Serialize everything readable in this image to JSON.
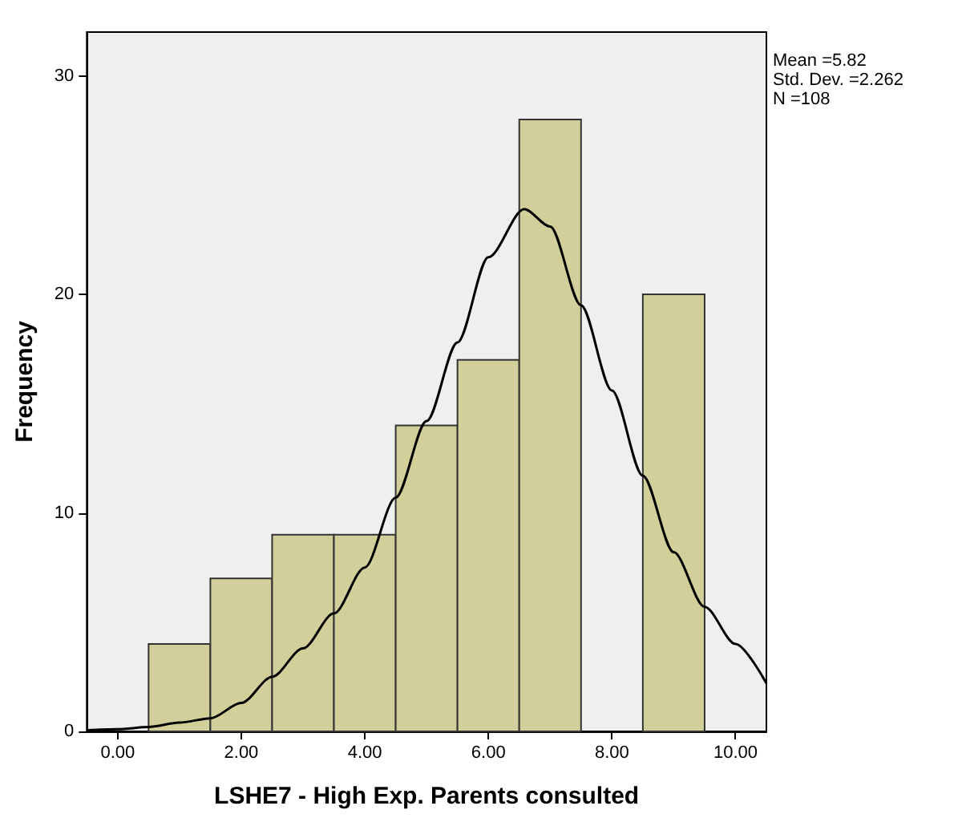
{
  "chart_data": {
    "type": "histogram",
    "xlabel": "LSHE7 - High Exp. Parents consulted",
    "ylabel": "Frequency",
    "bins": [
      0.5,
      1.5,
      2.5,
      3.5,
      4.5,
      5.5,
      6.5,
      7.5,
      8.5,
      9.5
    ],
    "values": [
      4,
      7,
      9,
      9,
      14,
      17,
      28,
      0,
      20
    ],
    "color": "#d3cf9b",
    "series": [
      {
        "type": "line",
        "color": "#000000",
        "x": [
          -0.5,
          0,
          0.5,
          1,
          1.5,
          2,
          2.5,
          3,
          3.5,
          4,
          4.5,
          5,
          5.5,
          6,
          6.58,
          7,
          7.5,
          8,
          8.5,
          9,
          9.5,
          10,
          10.5
        ],
        "values": [
          0.05,
          0.1,
          0.2,
          0.4,
          0.6,
          1.3,
          2.5,
          3.8,
          5.4,
          7.5,
          10.7,
          14.2,
          17.8,
          21.7,
          23.9,
          23.1,
          19.5,
          15.6,
          11.7,
          8.2,
          5.7,
          4.0,
          2.2
        ]
      }
    ],
    "xlim": [
      -0.5,
      10.5
    ],
    "xticks": [
      {
        "value": 0,
        "label": "0.00"
      },
      {
        "value": 2,
        "label": "2.00"
      },
      {
        "value": 4,
        "label": "4.00"
      },
      {
        "value": 6,
        "label": "6.00"
      },
      {
        "value": 8,
        "label": "8.00"
      },
      {
        "value": 10,
        "label": "10.00"
      }
    ],
    "ylim": [
      0,
      32
    ],
    "yticks": [
      0,
      10,
      20,
      30
    ],
    "grid": false,
    "marker": "none",
    "annotations": [
      "Mean =5.82",
      "Std. Dev. =2.262",
      "N =108"
    ]
  }
}
